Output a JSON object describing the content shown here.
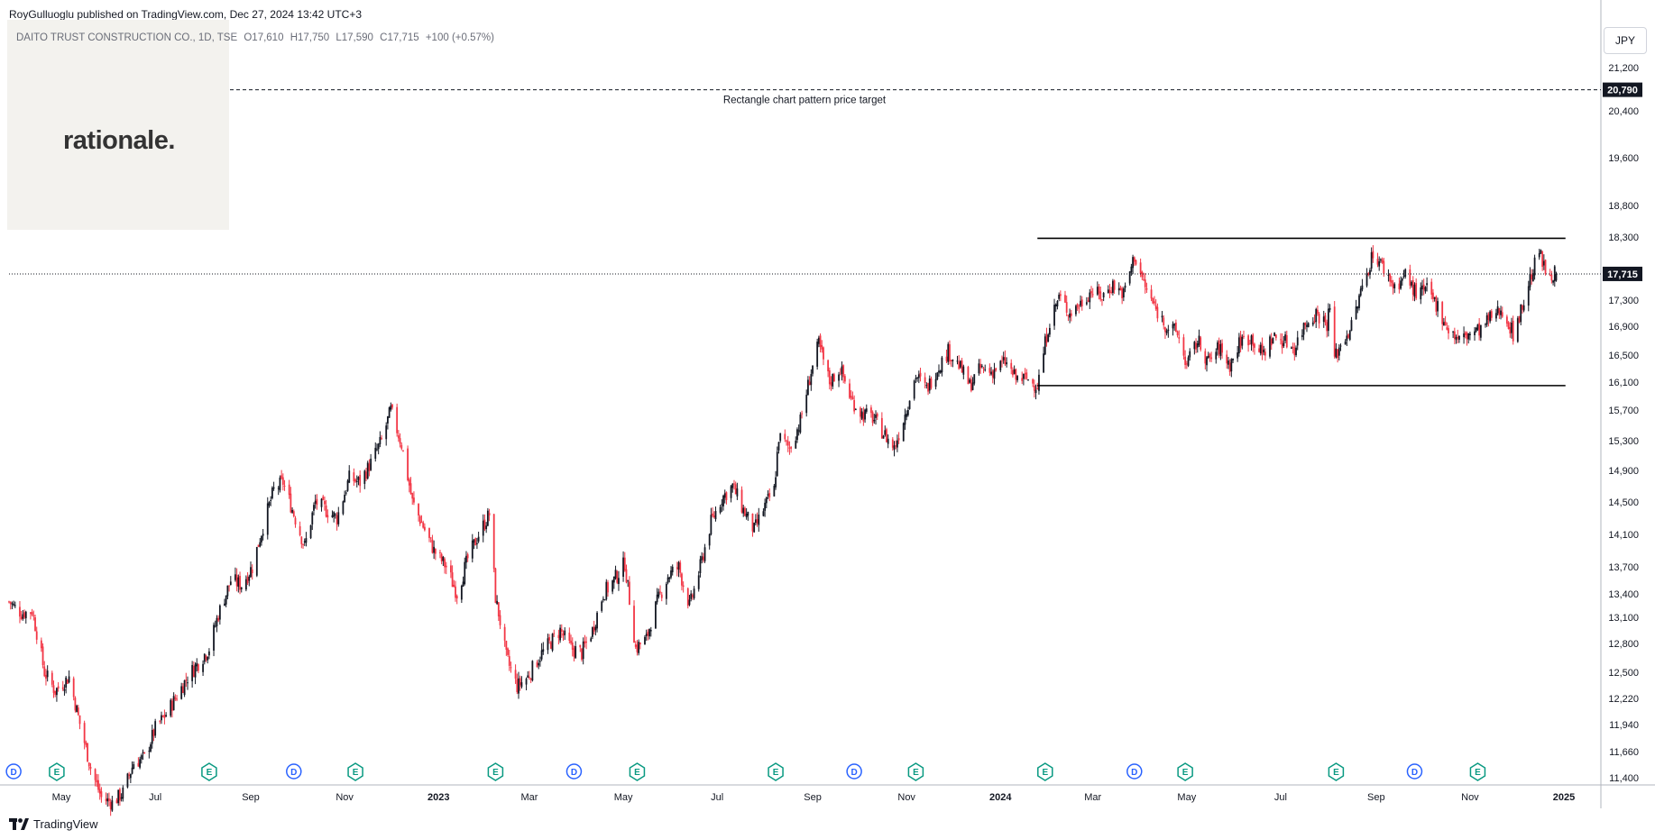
{
  "header": {
    "published_by": "RoyGulluoglu published on TradingView.com, Dec 27, 2024 13:42 UTC+3"
  },
  "logo": {
    "text": "rationale."
  },
  "symbol": {
    "label": "DAITO TRUST CONSTRUCTION CO., 1D, TSE",
    "open": "O17,610",
    "high": "H17,750",
    "low": "L17,590",
    "close": "C17,715",
    "change": "+100 (+0.57%)"
  },
  "currency": "JPY",
  "footer": {
    "brand": "TradingView"
  },
  "colors": {
    "up": "#131722",
    "down": "#f23645",
    "dividend": "#2962ff",
    "earnings_good": "#089981",
    "earnings_bad": "#f23645"
  },
  "chart_data": {
    "type": "candlestick",
    "y_ticks": [
      21200,
      20400,
      19600,
      18800,
      18300,
      17300,
      16900,
      16500,
      16100,
      15700,
      15300,
      14900,
      14500,
      14100,
      13700,
      13400,
      13100,
      12800,
      12500,
      12220,
      11940,
      11660,
      11400
    ],
    "y_tick_labels": [
      "21,200",
      "20,400",
      "19,600",
      "18,800",
      "18,300",
      "17,300",
      "16,900",
      "16,500",
      "16,100",
      "15,700",
      "15,300",
      "14,900",
      "14,500",
      "14,100",
      "13,700",
      "13,400",
      "13,100",
      "12,800",
      "12,500",
      "12,220",
      "11,940",
      "11,660",
      "11,400"
    ],
    "x_ticks": [
      {
        "date": "2022-05-01",
        "label": "May",
        "bold": false
      },
      {
        "date": "2022-07-01",
        "label": "Jul",
        "bold": false
      },
      {
        "date": "2022-09-01",
        "label": "Sep",
        "bold": false
      },
      {
        "date": "2022-11-01",
        "label": "Nov",
        "bold": false
      },
      {
        "date": "2023-01-01",
        "label": "2023",
        "bold": true
      },
      {
        "date": "2023-03-01",
        "label": "Mar",
        "bold": false
      },
      {
        "date": "2023-05-01",
        "label": "May",
        "bold": false
      },
      {
        "date": "2023-07-01",
        "label": "Jul",
        "bold": false
      },
      {
        "date": "2023-09-01",
        "label": "Sep",
        "bold": false
      },
      {
        "date": "2023-11-01",
        "label": "Nov",
        "bold": false
      },
      {
        "date": "2024-01-01",
        "label": "2024",
        "bold": true
      },
      {
        "date": "2024-03-01",
        "label": "Mar",
        "bold": false
      },
      {
        "date": "2024-05-01",
        "label": "May",
        "bold": false
      },
      {
        "date": "2024-07-01",
        "label": "Jul",
        "bold": false
      },
      {
        "date": "2024-09-01",
        "label": "Sep",
        "bold": false
      },
      {
        "date": "2024-11-01",
        "label": "Nov",
        "bold": false
      },
      {
        "date": "2025-01-01",
        "label": "2025",
        "bold": true
      }
    ],
    "x_range": [
      "2022-03-28",
      "2025-01-25"
    ],
    "anchors": [
      [
        "2022-03-28",
        13300
      ],
      [
        "2022-04-05",
        13150
      ],
      [
        "2022-04-12",
        13180
      ],
      [
        "2022-04-20",
        12500
      ],
      [
        "2022-04-27",
        12300
      ],
      [
        "2022-05-06",
        12450
      ],
      [
        "2022-05-13",
        11950
      ],
      [
        "2022-05-20",
        11500
      ],
      [
        "2022-05-27",
        11200
      ],
      [
        "2022-06-03",
        11150
      ],
      [
        "2022-06-10",
        11250
      ],
      [
        "2022-06-17",
        11550
      ],
      [
        "2022-06-24",
        11600
      ],
      [
        "2022-07-01",
        11900
      ],
      [
        "2022-07-08",
        12050
      ],
      [
        "2022-07-15",
        12250
      ],
      [
        "2022-07-22",
        12450
      ],
      [
        "2022-07-29",
        12600
      ],
      [
        "2022-08-05",
        12750
      ],
      [
        "2022-08-12",
        13200
      ],
      [
        "2022-08-19",
        13550
      ],
      [
        "2022-08-26",
        13500
      ],
      [
        "2022-09-02",
        13700
      ],
      [
        "2022-09-09",
        14200
      ],
      [
        "2022-09-16",
        14650
      ],
      [
        "2022-09-22",
        14750
      ],
      [
        "2022-09-29",
        14350
      ],
      [
        "2022-10-06",
        13950
      ],
      [
        "2022-10-13",
        14500
      ],
      [
        "2022-10-20",
        14400
      ],
      [
        "2022-10-27",
        14300
      ],
      [
        "2022-11-04",
        14800
      ],
      [
        "2022-11-11",
        14750
      ],
      [
        "2022-11-18",
        15000
      ],
      [
        "2022-11-25",
        15300
      ],
      [
        "2022-12-01",
        15700
      ],
      [
        "2022-12-08",
        15250
      ],
      [
        "2022-12-15",
        14500
      ],
      [
        "2022-12-22",
        14200
      ],
      [
        "2022-12-29",
        13900
      ],
      [
        "2023-01-06",
        13700
      ],
      [
        "2023-01-13",
        13400
      ],
      [
        "2023-01-20",
        13800
      ],
      [
        "2023-01-27",
        14100
      ],
      [
        "2023-02-03",
        14350
      ],
      [
        "2023-02-07",
        13350
      ],
      [
        "2023-02-14",
        12650
      ],
      [
        "2023-02-21",
        12350
      ],
      [
        "2023-02-28",
        12450
      ],
      [
        "2023-03-07",
        12650
      ],
      [
        "2023-03-14",
        12800
      ],
      [
        "2023-03-21",
        12950
      ],
      [
        "2023-03-28",
        12750
      ],
      [
        "2023-04-04",
        12700
      ],
      [
        "2023-04-11",
        12950
      ],
      [
        "2023-04-18",
        13400
      ],
      [
        "2023-04-25",
        13550
      ],
      [
        "2023-05-02",
        13750
      ],
      [
        "2023-05-09",
        12750
      ],
      [
        "2023-05-16",
        12850
      ],
      [
        "2023-05-23",
        13300
      ],
      [
        "2023-05-30",
        13600
      ],
      [
        "2023-06-06",
        13700
      ],
      [
        "2023-06-13",
        13250
      ],
      [
        "2023-06-20",
        13700
      ],
      [
        "2023-06-27",
        14250
      ],
      [
        "2023-07-04",
        14550
      ],
      [
        "2023-07-11",
        14700
      ],
      [
        "2023-07-18",
        14400
      ],
      [
        "2023-07-25",
        14150
      ],
      [
        "2023-08-01",
        14450
      ],
      [
        "2023-08-07",
        14650
      ],
      [
        "2023-08-10",
        15350
      ],
      [
        "2023-08-17",
        15200
      ],
      [
        "2023-08-24",
        15550
      ],
      [
        "2023-08-31",
        16250
      ],
      [
        "2023-09-05",
        16650
      ],
      [
        "2023-09-12",
        16100
      ],
      [
        "2023-09-19",
        16300
      ],
      [
        "2023-09-26",
        15850
      ],
      [
        "2023-10-03",
        15650
      ],
      [
        "2023-10-10",
        15600
      ],
      [
        "2023-10-17",
        15400
      ],
      [
        "2023-10-24",
        15200
      ],
      [
        "2023-10-31",
        15650
      ],
      [
        "2023-11-07",
        16200
      ],
      [
        "2023-11-14",
        16000
      ],
      [
        "2023-11-21",
        16300
      ],
      [
        "2023-11-28",
        16550
      ],
      [
        "2023-12-05",
        16350
      ],
      [
        "2023-12-12",
        16050
      ],
      [
        "2023-12-19",
        16300
      ],
      [
        "2023-12-26",
        16250
      ],
      [
        "2024-01-04",
        16400
      ],
      [
        "2024-01-11",
        16150
      ],
      [
        "2024-01-18",
        16150
      ],
      [
        "2024-01-25",
        16050
      ],
      [
        "2024-02-01",
        16900
      ],
      [
        "2024-02-08",
        17350
      ],
      [
        "2024-02-15",
        17100
      ],
      [
        "2024-02-22",
        17250
      ],
      [
        "2024-02-29",
        17450
      ],
      [
        "2024-03-07",
        17350
      ],
      [
        "2024-03-14",
        17550
      ],
      [
        "2024-03-21",
        17400
      ],
      [
        "2024-03-28",
        18000
      ],
      [
        "2024-04-04",
        17500
      ],
      [
        "2024-04-11",
        17150
      ],
      [
        "2024-04-18",
        16900
      ],
      [
        "2024-04-25",
        16800
      ],
      [
        "2024-05-01",
        16350
      ],
      [
        "2024-05-08",
        16700
      ],
      [
        "2024-05-15",
        16400
      ],
      [
        "2024-05-22",
        16600
      ],
      [
        "2024-05-29",
        16350
      ],
      [
        "2024-06-05",
        16700
      ],
      [
        "2024-06-12",
        16750
      ],
      [
        "2024-06-19",
        16500
      ],
      [
        "2024-06-26",
        16750
      ],
      [
        "2024-07-03",
        16700
      ],
      [
        "2024-07-10",
        16600
      ],
      [
        "2024-07-17",
        16950
      ],
      [
        "2024-07-24",
        17100
      ],
      [
        "2024-07-31",
        16950
      ],
      [
        "2024-08-02",
        17200
      ],
      [
        "2024-08-05",
        16450
      ],
      [
        "2024-08-09",
        16650
      ],
      [
        "2024-08-16",
        16900
      ],
      [
        "2024-08-23",
        17500
      ],
      [
        "2024-08-30",
        18050
      ],
      [
        "2024-09-06",
        17800
      ],
      [
        "2024-09-13",
        17500
      ],
      [
        "2024-09-20",
        17700
      ],
      [
        "2024-09-27",
        17400
      ],
      [
        "2024-10-04",
        17450
      ],
      [
        "2024-10-11",
        17200
      ],
      [
        "2024-10-18",
        16850
      ],
      [
        "2024-10-25",
        16700
      ],
      [
        "2024-11-01",
        16800
      ],
      [
        "2024-11-08",
        16850
      ],
      [
        "2024-11-15",
        17050
      ],
      [
        "2024-11-22",
        17150
      ],
      [
        "2024-11-29",
        16800
      ],
      [
        "2024-12-05",
        17200
      ],
      [
        "2024-12-12",
        17800
      ],
      [
        "2024-12-16",
        18050
      ],
      [
        "2024-12-20",
        17750
      ],
      [
        "2024-12-27",
        17715
      ]
    ],
    "last_candle": {
      "open": 17610,
      "high": 17750,
      "low": 17590,
      "close": 17715
    },
    "last_price_label": "17,715",
    "target": {
      "value": 20790,
      "label": "20,790",
      "text": "Rectangle chart pattern price target"
    },
    "rectangle": {
      "top": 18280,
      "bottom": 16050,
      "start": "2024-01-25",
      "end": "2025-01-02"
    },
    "events": [
      {
        "date": "2022-03-31",
        "type": "D"
      },
      {
        "date": "2022-04-28",
        "type": "E"
      },
      {
        "date": "2022-08-05",
        "type": "E"
      },
      {
        "date": "2022-09-29",
        "type": "D"
      },
      {
        "date": "2022-11-08",
        "type": "E"
      },
      {
        "date": "2023-02-07",
        "type": "E"
      },
      {
        "date": "2023-03-30",
        "type": "D"
      },
      {
        "date": "2023-05-10",
        "type": "E"
      },
      {
        "date": "2023-08-08",
        "type": "E"
      },
      {
        "date": "2023-09-28",
        "type": "D"
      },
      {
        "date": "2023-11-07",
        "type": "E"
      },
      {
        "date": "2024-01-30",
        "type": "E"
      },
      {
        "date": "2024-03-28",
        "type": "D"
      },
      {
        "date": "2024-04-30",
        "type": "E"
      },
      {
        "date": "2024-08-06",
        "type": "E"
      },
      {
        "date": "2024-09-26",
        "type": "D"
      },
      {
        "date": "2024-11-06",
        "type": "E"
      }
    ]
  }
}
